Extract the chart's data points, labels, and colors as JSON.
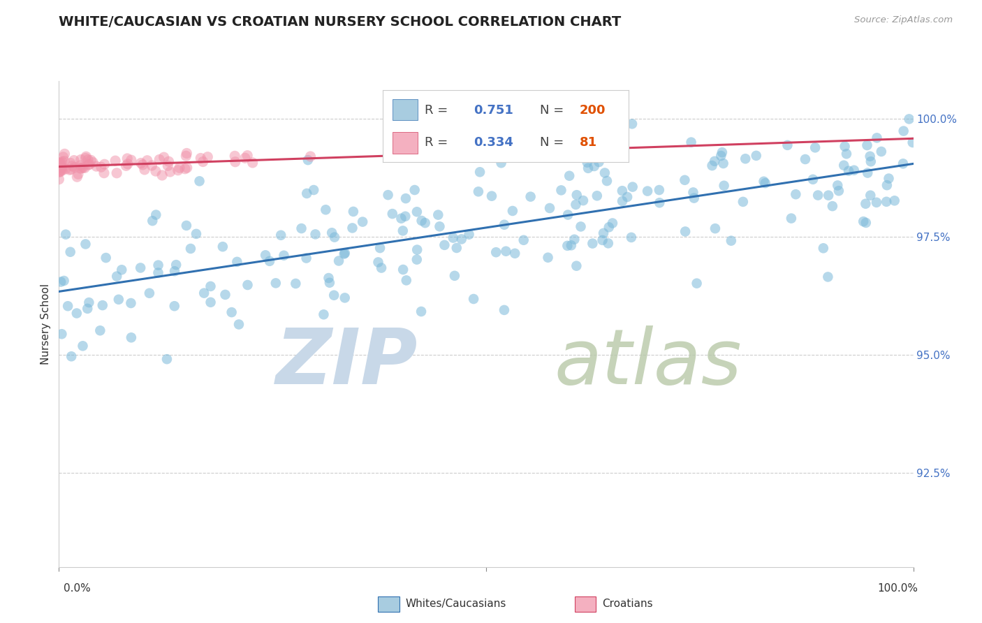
{
  "title": "WHITE/CAUCASIAN VS CROATIAN NURSERY SCHOOL CORRELATION CHART",
  "source": "Source: ZipAtlas.com",
  "ylabel": "Nursery School",
  "blue_color": "#7ab8d9",
  "pink_color": "#f090a8",
  "blue_line_color": "#3070b0",
  "pink_line_color": "#d04060",
  "blue_fill_color": "#a8cce0",
  "pink_fill_color": "#f4b0c0",
  "watermark_zip_color": "#c8d8e8",
  "watermark_atlas_color": "#b8c8a8",
  "grid_color": "#cccccc",
  "tick_label_color": "#4472c4",
  "ytick_vals": [
    0.925,
    0.95,
    0.975,
    1.0
  ],
  "ytick_labels": [
    "92.5%",
    "95.0%",
    "97.5%",
    "100.0%"
  ],
  "ylim": [
    0.905,
    1.008
  ],
  "xlim": [
    0.0,
    1.0
  ],
  "blue_R": 0.751,
  "blue_N": 200,
  "pink_R": 0.334,
  "pink_N": 81,
  "blue_seed": 12,
  "pink_seed": 99,
  "N_color": "#e05000",
  "R_label_color": "#4472c4",
  "legend_box_color": "#cccccc"
}
